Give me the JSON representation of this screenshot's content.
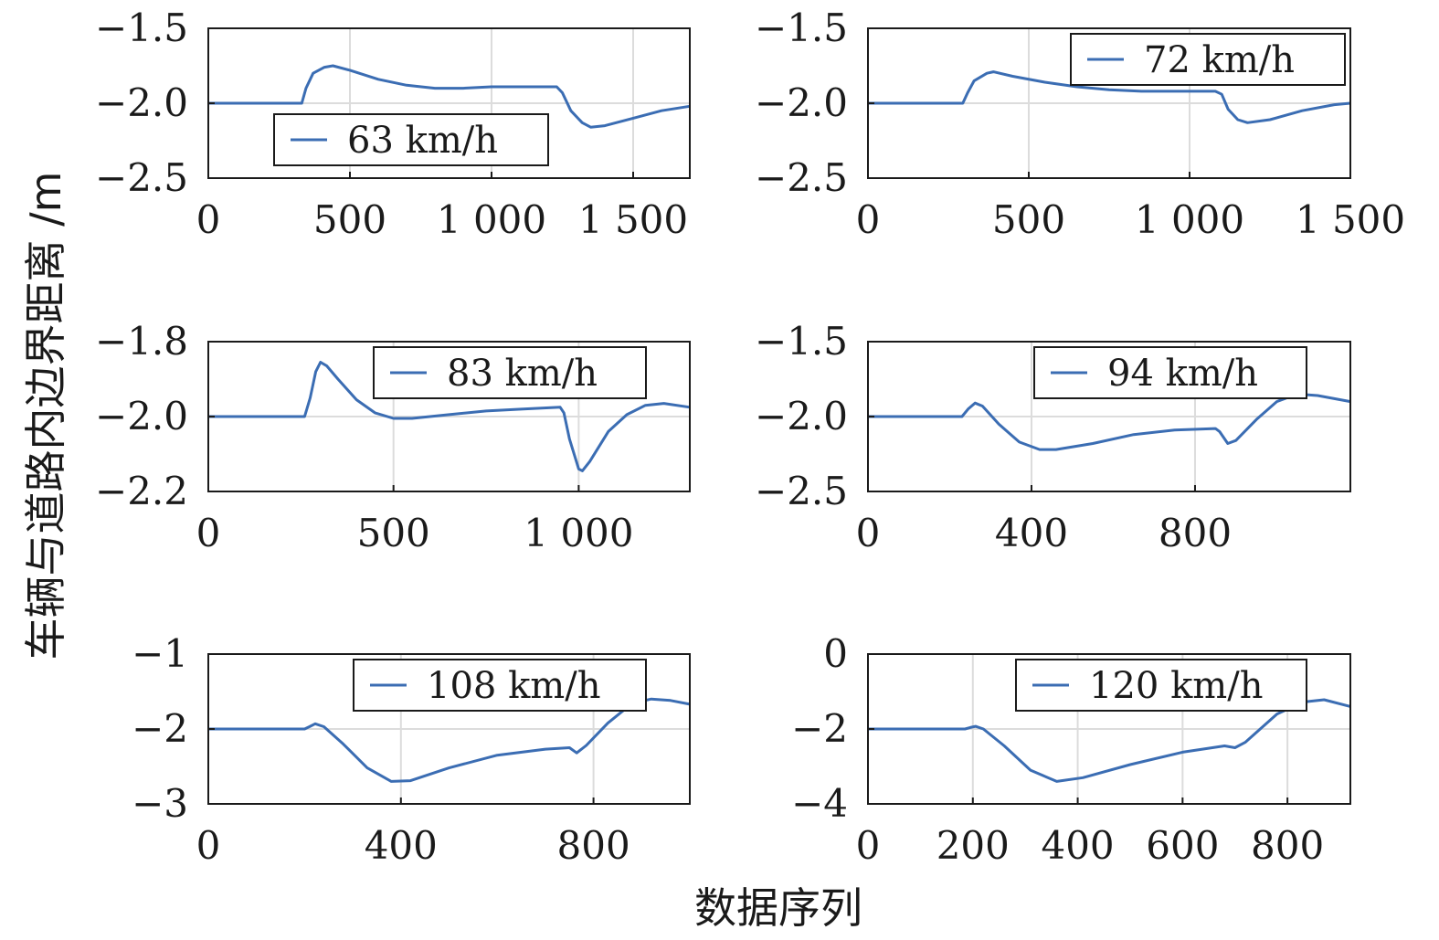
{
  "figure": {
    "xlabel": "数据序列",
    "ylabel": "车辆与道路内边界距离 /m",
    "line_color": "#3b6db3"
  },
  "chart_data": [
    {
      "type": "line",
      "legend": "63 km/h",
      "legend_pos": "bottom-left",
      "xlim": [
        0,
        1700
      ],
      "ylim": [
        -2.5,
        -1.5
      ],
      "xticks": [
        0,
        500,
        1000,
        1500
      ],
      "xtick_labels": [
        "0",
        "500",
        "1 000",
        "1 500"
      ],
      "yticks": [
        -1.5,
        -2.0,
        -2.5
      ],
      "ytick_labels": [
        "−1.5",
        "−2.0",
        "−2.5"
      ],
      "points": [
        [
          0,
          -2.0
        ],
        [
          330,
          -2.0
        ],
        [
          345,
          -1.9
        ],
        [
          370,
          -1.8
        ],
        [
          410,
          -1.76
        ],
        [
          440,
          -1.75
        ],
        [
          500,
          -1.78
        ],
        [
          600,
          -1.84
        ],
        [
          700,
          -1.88
        ],
        [
          800,
          -1.9
        ],
        [
          900,
          -1.9
        ],
        [
          1000,
          -1.89
        ],
        [
          1100,
          -1.89
        ],
        [
          1230,
          -1.89
        ],
        [
          1250,
          -1.93
        ],
        [
          1280,
          -2.05
        ],
        [
          1320,
          -2.13
        ],
        [
          1350,
          -2.16
        ],
        [
          1400,
          -2.15
        ],
        [
          1500,
          -2.1
        ],
        [
          1600,
          -2.05
        ],
        [
          1700,
          -2.02
        ]
      ]
    },
    {
      "type": "line",
      "legend": "72 km/h",
      "legend_pos": "top-right",
      "xlim": [
        0,
        1500
      ],
      "ylim": [
        -2.5,
        -1.5
      ],
      "xticks": [
        0,
        500,
        1000,
        1500
      ],
      "xtick_labels": [
        "0",
        "500",
        "1 000",
        "1 500"
      ],
      "yticks": [
        -1.5,
        -2.0,
        -2.5
      ],
      "ytick_labels": [
        "−1.5",
        "−2.0",
        "−2.5"
      ],
      "points": [
        [
          0,
          -2.0
        ],
        [
          295,
          -2.0
        ],
        [
          310,
          -1.93
        ],
        [
          330,
          -1.85
        ],
        [
          370,
          -1.8
        ],
        [
          390,
          -1.79
        ],
        [
          450,
          -1.82
        ],
        [
          550,
          -1.86
        ],
        [
          650,
          -1.89
        ],
        [
          750,
          -1.91
        ],
        [
          850,
          -1.92
        ],
        [
          950,
          -1.92
        ],
        [
          1080,
          -1.92
        ],
        [
          1100,
          -1.94
        ],
        [
          1120,
          -2.04
        ],
        [
          1150,
          -2.11
        ],
        [
          1180,
          -2.13
        ],
        [
          1250,
          -2.11
        ],
        [
          1350,
          -2.05
        ],
        [
          1450,
          -2.01
        ],
        [
          1500,
          -2.0
        ]
      ]
    },
    {
      "type": "line",
      "legend": "83 km/h",
      "legend_pos": "top-right",
      "xlim": [
        0,
        1300
      ],
      "ylim": [
        -2.2,
        -1.8
      ],
      "xticks": [
        0,
        500,
        1000
      ],
      "xtick_labels": [
        "0",
        "500",
        "1 000"
      ],
      "yticks": [
        -1.8,
        -2.0,
        -2.2
      ],
      "ytick_labels": [
        "−1.8",
        "−2.0",
        "−2.2"
      ],
      "points": [
        [
          0,
          -2.0
        ],
        [
          260,
          -2.0
        ],
        [
          275,
          -1.95
        ],
        [
          290,
          -1.88
        ],
        [
          303,
          -1.855
        ],
        [
          320,
          -1.865
        ],
        [
          350,
          -1.9
        ],
        [
          400,
          -1.955
        ],
        [
          450,
          -1.99
        ],
        [
          500,
          -2.005
        ],
        [
          550,
          -2.005
        ],
        [
          650,
          -1.995
        ],
        [
          750,
          -1.985
        ],
        [
          850,
          -1.98
        ],
        [
          950,
          -1.975
        ],
        [
          960,
          -1.99
        ],
        [
          975,
          -2.06
        ],
        [
          1000,
          -2.14
        ],
        [
          1010,
          -2.145
        ],
        [
          1030,
          -2.12
        ],
        [
          1080,
          -2.04
        ],
        [
          1130,
          -1.995
        ],
        [
          1180,
          -1.97
        ],
        [
          1230,
          -1.965
        ],
        [
          1300,
          -1.975
        ]
      ]
    },
    {
      "type": "line",
      "legend": "94 km/h",
      "legend_pos": "top-right",
      "xlim": [
        0,
        1180
      ],
      "ylim": [
        -2.5,
        -1.5
      ],
      "xticks": [
        0,
        400,
        800
      ],
      "xtick_labels": [
        "0",
        "400",
        "800"
      ],
      "yticks": [
        -1.5,
        -2.0,
        -2.5
      ],
      "ytick_labels": [
        "−1.5",
        "−2.0",
        "−2.5"
      ],
      "points": [
        [
          0,
          -2.0
        ],
        [
          230,
          -2.0
        ],
        [
          245,
          -1.95
        ],
        [
          262,
          -1.91
        ],
        [
          280,
          -1.93
        ],
        [
          320,
          -2.05
        ],
        [
          370,
          -2.17
        ],
        [
          420,
          -2.22
        ],
        [
          460,
          -2.22
        ],
        [
          550,
          -2.18
        ],
        [
          650,
          -2.12
        ],
        [
          750,
          -2.09
        ],
        [
          850,
          -2.08
        ],
        [
          860,
          -2.1
        ],
        [
          880,
          -2.18
        ],
        [
          900,
          -2.16
        ],
        [
          950,
          -2.02
        ],
        [
          1000,
          -1.9
        ],
        [
          1050,
          -1.85
        ],
        [
          1100,
          -1.86
        ],
        [
          1180,
          -1.9
        ]
      ]
    },
    {
      "type": "line",
      "legend": "108 km/h",
      "legend_pos": "top-right",
      "xlim": [
        0,
        1000
      ],
      "ylim": [
        -3,
        -1
      ],
      "xticks": [
        0,
        400,
        800
      ],
      "xtick_labels": [
        "0",
        "400",
        "800"
      ],
      "yticks": [
        -1,
        -2,
        -3
      ],
      "ytick_labels": [
        "−1",
        "−2",
        "−3"
      ],
      "points": [
        [
          0,
          -2.0
        ],
        [
          200,
          -2.0
        ],
        [
          210,
          -1.97
        ],
        [
          222,
          -1.93
        ],
        [
          240,
          -1.97
        ],
        [
          280,
          -2.2
        ],
        [
          330,
          -2.52
        ],
        [
          380,
          -2.7
        ],
        [
          420,
          -2.69
        ],
        [
          500,
          -2.52
        ],
        [
          600,
          -2.35
        ],
        [
          700,
          -2.27
        ],
        [
          750,
          -2.25
        ],
        [
          765,
          -2.32
        ],
        [
          785,
          -2.22
        ],
        [
          830,
          -1.92
        ],
        [
          880,
          -1.66
        ],
        [
          920,
          -1.6
        ],
        [
          960,
          -1.62
        ],
        [
          1000,
          -1.67
        ]
      ]
    },
    {
      "type": "line",
      "legend": "120 km/h",
      "legend_pos": "top-right",
      "xlim": [
        0,
        920
      ],
      "ylim": [
        -4,
        0
      ],
      "xticks": [
        0,
        200,
        400,
        600,
        800
      ],
      "xtick_labels": [
        "0",
        "200",
        "400",
        "600",
        "800"
      ],
      "yticks": [
        0,
        -2,
        -4
      ],
      "ytick_labels": [
        "0",
        "−2",
        "−4"
      ],
      "points": [
        [
          0,
          -2.0
        ],
        [
          185,
          -2.0
        ],
        [
          195,
          -1.96
        ],
        [
          205,
          -1.93
        ],
        [
          220,
          -2.0
        ],
        [
          260,
          -2.45
        ],
        [
          310,
          -3.1
        ],
        [
          360,
          -3.4
        ],
        [
          410,
          -3.3
        ],
        [
          500,
          -2.95
        ],
        [
          600,
          -2.62
        ],
        [
          680,
          -2.45
        ],
        [
          700,
          -2.5
        ],
        [
          720,
          -2.35
        ],
        [
          780,
          -1.6
        ],
        [
          830,
          -1.28
        ],
        [
          870,
          -1.22
        ],
        [
          920,
          -1.4
        ]
      ]
    }
  ]
}
